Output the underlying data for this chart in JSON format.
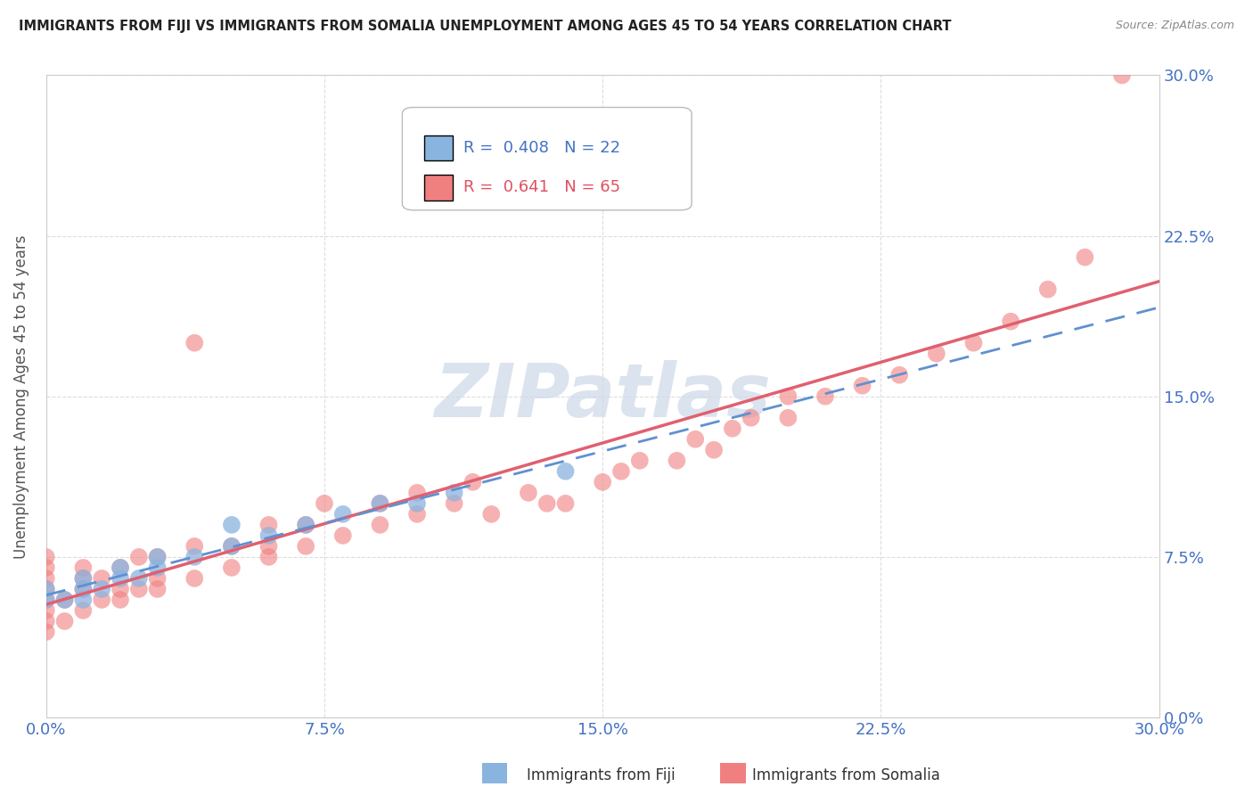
{
  "title": "IMMIGRANTS FROM FIJI VS IMMIGRANTS FROM SOMALIA UNEMPLOYMENT AMONG AGES 45 TO 54 YEARS CORRELATION CHART",
  "source": "Source: ZipAtlas.com",
  "ylabel": "Unemployment Among Ages 45 to 54 years",
  "fiji_color": "#8ab4e0",
  "somalia_color": "#f08080",
  "fiji_r": 0.408,
  "fiji_n": 22,
  "somalia_r": 0.641,
  "somalia_n": 65,
  "xlim": [
    0,
    0.3
  ],
  "ylim": [
    0,
    0.3
  ],
  "xticks": [
    0.0,
    0.075,
    0.15,
    0.225,
    0.3
  ],
  "yticks": [
    0.0,
    0.075,
    0.15,
    0.225,
    0.3
  ],
  "tick_color": "#4472c4",
  "fiji_x": [
    0.0,
    0.0,
    0.005,
    0.01,
    0.01,
    0.01,
    0.015,
    0.02,
    0.02,
    0.025,
    0.03,
    0.03,
    0.04,
    0.05,
    0.05,
    0.06,
    0.07,
    0.08,
    0.09,
    0.1,
    0.11,
    0.14
  ],
  "fiji_y": [
    0.055,
    0.06,
    0.055,
    0.055,
    0.06,
    0.065,
    0.06,
    0.065,
    0.07,
    0.065,
    0.07,
    0.075,
    0.075,
    0.08,
    0.09,
    0.085,
    0.09,
    0.095,
    0.1,
    0.1,
    0.105,
    0.115
  ],
  "somalia_x": [
    0.0,
    0.0,
    0.0,
    0.0,
    0.0,
    0.0,
    0.0,
    0.0,
    0.005,
    0.005,
    0.01,
    0.01,
    0.01,
    0.01,
    0.015,
    0.015,
    0.02,
    0.02,
    0.02,
    0.025,
    0.025,
    0.03,
    0.03,
    0.03,
    0.04,
    0.04,
    0.04,
    0.05,
    0.05,
    0.06,
    0.06,
    0.06,
    0.07,
    0.07,
    0.075,
    0.08,
    0.09,
    0.09,
    0.1,
    0.1,
    0.11,
    0.115,
    0.12,
    0.13,
    0.135,
    0.14,
    0.15,
    0.155,
    0.16,
    0.17,
    0.175,
    0.18,
    0.185,
    0.19,
    0.2,
    0.2,
    0.21,
    0.22,
    0.23,
    0.24,
    0.25,
    0.26,
    0.27,
    0.28,
    0.29
  ],
  "somalia_y": [
    0.04,
    0.045,
    0.05,
    0.055,
    0.06,
    0.065,
    0.07,
    0.075,
    0.045,
    0.055,
    0.05,
    0.06,
    0.065,
    0.07,
    0.055,
    0.065,
    0.055,
    0.06,
    0.07,
    0.06,
    0.075,
    0.06,
    0.065,
    0.075,
    0.065,
    0.08,
    0.175,
    0.07,
    0.08,
    0.075,
    0.08,
    0.09,
    0.08,
    0.09,
    0.1,
    0.085,
    0.09,
    0.1,
    0.095,
    0.105,
    0.1,
    0.11,
    0.095,
    0.105,
    0.1,
    0.1,
    0.11,
    0.115,
    0.12,
    0.12,
    0.13,
    0.125,
    0.135,
    0.14,
    0.14,
    0.15,
    0.15,
    0.155,
    0.16,
    0.17,
    0.175,
    0.185,
    0.2,
    0.215,
    0.3
  ],
  "background_color": "#ffffff",
  "grid_color": "#dddddd",
  "watermark_text": "ZIPatlas",
  "watermark_color": "#ccd8e8",
  "legend_fiji_label": "Immigrants from Fiji",
  "legend_somalia_label": "Immigrants from Somalia"
}
